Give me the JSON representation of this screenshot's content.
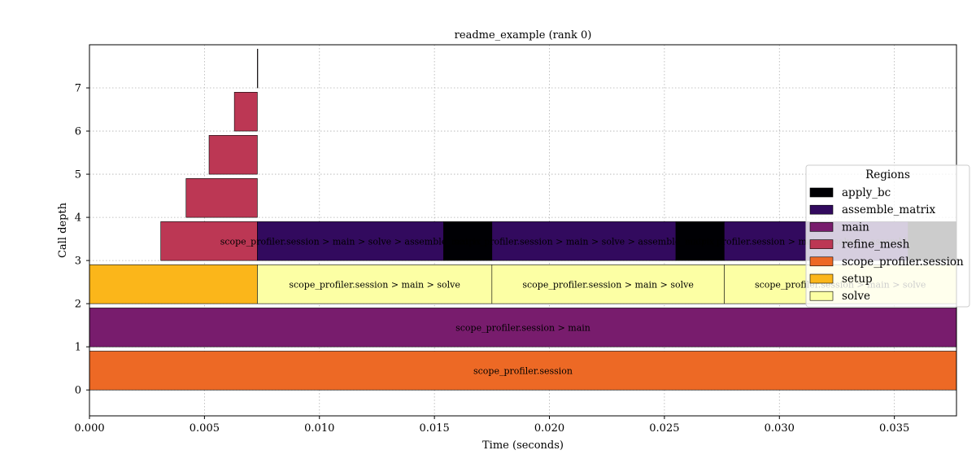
{
  "chart_data": {
    "type": "flame",
    "title": "readme_example (rank 0)",
    "xlabel": "Time (seconds)",
    "ylabel": "Call depth",
    "xlim": [
      0.0,
      0.0377
    ],
    "ylim": [
      -0.6,
      8.0
    ],
    "xticks": [
      "0.000",
      "0.005",
      "0.010",
      "0.015",
      "0.020",
      "0.025",
      "0.030",
      "0.035"
    ],
    "yticks": [
      "0",
      "1",
      "2",
      "3",
      "4",
      "5",
      "6",
      "7"
    ],
    "grid": true,
    "legend": {
      "title": "Regions",
      "placement": "right",
      "entries": [
        {
          "name": "apply_bc",
          "color": "#000004"
        },
        {
          "name": "assemble_matrix",
          "color": "#320a5e"
        },
        {
          "name": "main",
          "color": "#781c6d"
        },
        {
          "name": "refine_mesh",
          "color": "#bc3754"
        },
        {
          "name": "scope_profiler.session",
          "color": "#ed6925"
        },
        {
          "name": "setup",
          "color": "#fbb61a"
        },
        {
          "name": "solve",
          "color": "#fcffa4"
        }
      ]
    },
    "bars": [
      {
        "region": "scope_profiler.session",
        "depth": 0,
        "start": 0.0,
        "end": 0.0377,
        "label": "scope_profiler.session"
      },
      {
        "region": "main",
        "depth": 1,
        "start": 0.0,
        "end": 0.0377,
        "label": "scope_profiler.session > main"
      },
      {
        "region": "setup",
        "depth": 2,
        "start": 0.0,
        "end": 0.0073,
        "label": ""
      },
      {
        "region": "solve",
        "depth": 2,
        "start": 0.0073,
        "end": 0.0175,
        "label": "scope_profiler.session > main > solve"
      },
      {
        "region": "solve",
        "depth": 2,
        "start": 0.0175,
        "end": 0.0276,
        "label": "scope_profiler.session > main > solve"
      },
      {
        "region": "solve",
        "depth": 2,
        "start": 0.0276,
        "end": 0.0377,
        "label": "scope_profiler.session > main > solve"
      },
      {
        "region": "refine_mesh",
        "depth": 3,
        "start": 0.0031,
        "end": 0.0073,
        "label": ""
      },
      {
        "region": "assemble_matrix",
        "depth": 3,
        "start": 0.0073,
        "end": 0.0154,
        "label": "scope_profiler.session > main > solve > assemble_matrix"
      },
      {
        "region": "apply_bc",
        "depth": 3,
        "start": 0.0154,
        "end": 0.0175,
        "label": ""
      },
      {
        "region": "assemble_matrix",
        "depth": 3,
        "start": 0.0175,
        "end": 0.0255,
        "label": "scope_profiler.session > main > solve > assemble_matrix"
      },
      {
        "region": "apply_bc",
        "depth": 3,
        "start": 0.0255,
        "end": 0.0276,
        "label": ""
      },
      {
        "region": "assemble_matrix",
        "depth": 3,
        "start": 0.0276,
        "end": 0.0356,
        "label": "scope_profiler.session > main > solve > assemble_matrix"
      },
      {
        "region": "apply_bc",
        "depth": 3,
        "start": 0.0356,
        "end": 0.0377,
        "label": ""
      },
      {
        "region": "refine_mesh",
        "depth": 4,
        "start": 0.0042,
        "end": 0.0073,
        "label": ""
      },
      {
        "region": "refine_mesh",
        "depth": 5,
        "start": 0.0052,
        "end": 0.0073,
        "label": ""
      },
      {
        "region": "refine_mesh",
        "depth": 6,
        "start": 0.0063,
        "end": 0.0073,
        "label": ""
      },
      {
        "region": "refine_mesh",
        "depth": 7,
        "start": 0.0073,
        "end": 0.00732,
        "label": ""
      }
    ]
  }
}
